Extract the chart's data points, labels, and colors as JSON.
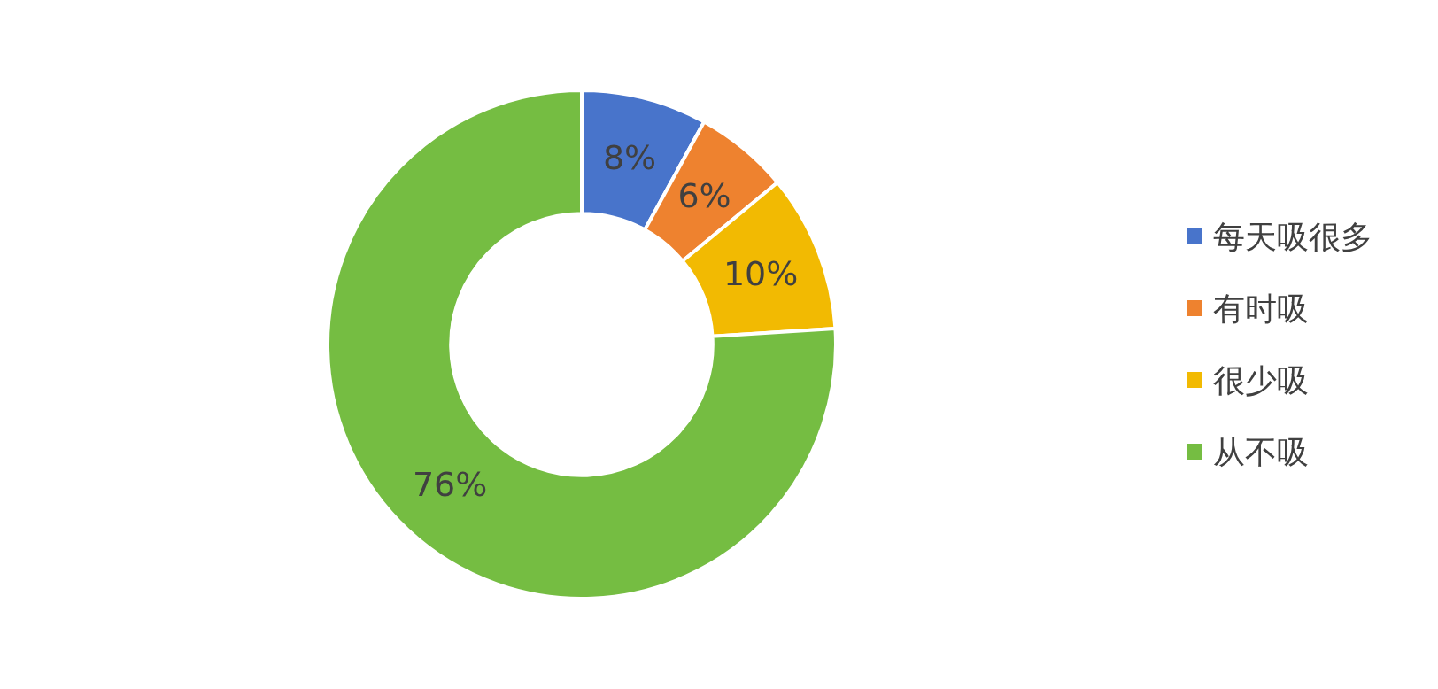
{
  "chart_data": {
    "type": "donut",
    "categories": [
      "每天吸很多",
      "有时吸",
      "很少吸",
      "从不吸"
    ],
    "values": [
      8,
      6,
      10,
      76
    ],
    "colors": [
      "#4874cb",
      "#ee822f",
      "#f2ba02",
      "#75bd42"
    ],
    "value_labels": [
      "8%",
      "6%",
      "10%",
      "76%"
    ],
    "legend": "right"
  }
}
